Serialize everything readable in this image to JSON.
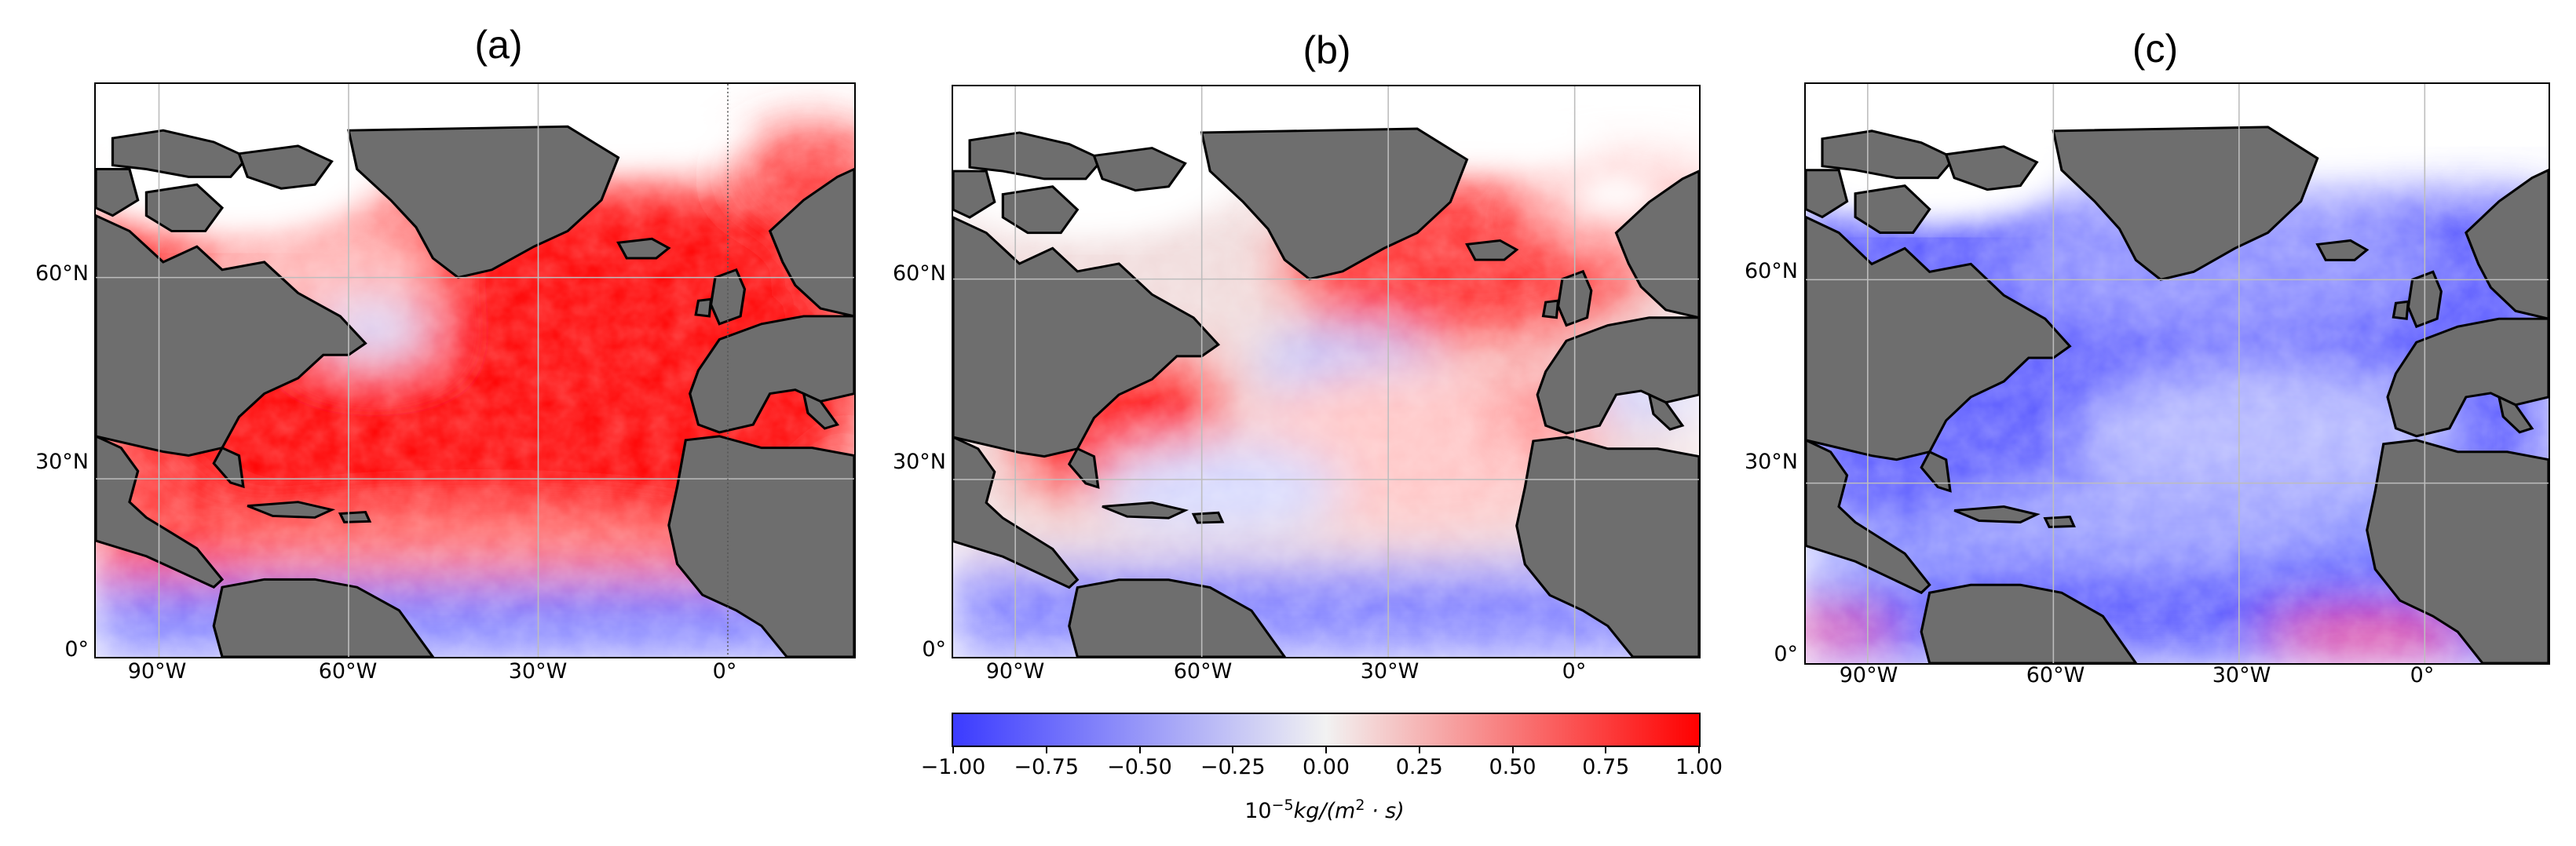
{
  "panels": [
    {
      "title": "(a)",
      "scheme": "positive_strong"
    },
    {
      "title": "(b)",
      "scheme": "mixed"
    },
    {
      "title": "(c)",
      "scheme": "negative"
    }
  ],
  "axes": {
    "lat_ticks": [
      "60°N",
      "30°N",
      "0°"
    ],
    "lon_ticks": [
      "90°W",
      "60°W",
      "30°W",
      "0°"
    ],
    "lon_range": [
      -100,
      20
    ],
    "lat_range": [
      0,
      80
    ]
  },
  "colorbar": {
    "ticks": [
      "−1.00",
      "−0.75",
      "−0.50",
      "−0.25",
      "0.00",
      "0.25",
      "0.50",
      "0.75",
      "1.00"
    ],
    "range": [
      -1.0,
      1.0
    ],
    "label_prefix": "10",
    "label_exp": "−5",
    "label_unit": "kg/(m",
    "label_exp2": "2",
    "label_tail": " · s)",
    "colormap": [
      "#3b3bff",
      "#ffffff",
      "#ff0000"
    ]
  },
  "colors": {
    "land": "#6e6e6e",
    "coast": "#000000",
    "ice": "#ffffff",
    "grid": "#bdbdbd"
  }
}
